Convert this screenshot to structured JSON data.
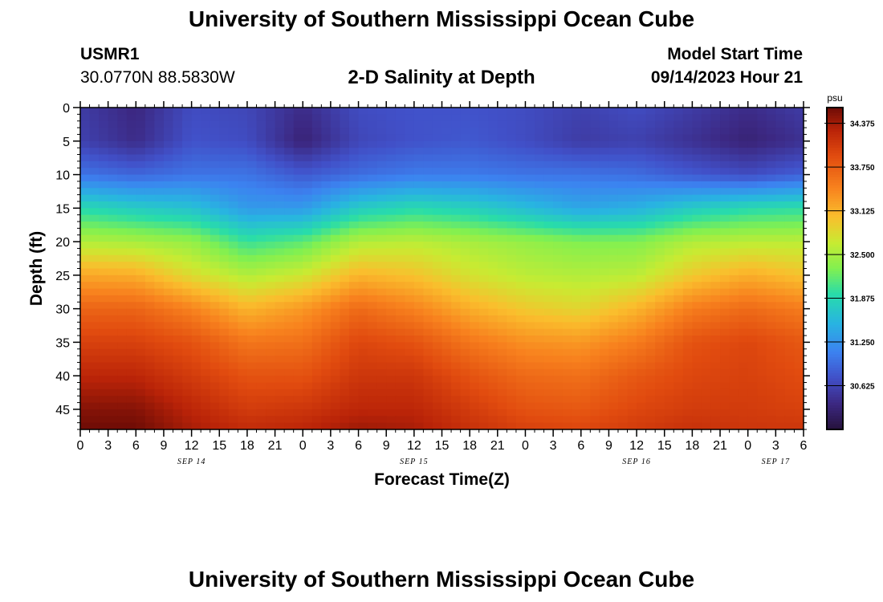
{
  "header": {
    "title": "University of Southern Mississippi Ocean Cube",
    "station_id": "USMR1",
    "station_coords": "30.0770N  88.5830W",
    "chart_title": "2-D Salinity at Depth",
    "start_label": "Model Start Time",
    "start_value": "09/14/2023 Hour 21"
  },
  "footer": {
    "title": "University of Southern Mississippi Ocean Cube"
  },
  "chart_data": {
    "type": "heatmap",
    "title": "2-D Salinity at Depth",
    "xlabel": "Forecast Time(Z)",
    "ylabel": "Depth (ft)",
    "units": "psu",
    "xlim": [
      0,
      78
    ],
    "ylim": [
      48,
      0
    ],
    "x_ticks": [
      0,
      3,
      6,
      9,
      12,
      15,
      18,
      21,
      24,
      27,
      30,
      33,
      36,
      39,
      42,
      45,
      48,
      51,
      54,
      57,
      60,
      63,
      66,
      69,
      72,
      75,
      78
    ],
    "x_tick_labels": [
      "0",
      "3",
      "6",
      "9",
      "12",
      "15",
      "18",
      "21",
      "0",
      "3",
      "6",
      "9",
      "12",
      "15",
      "18",
      "21",
      "0",
      "3",
      "6",
      "9",
      "12",
      "15",
      "18",
      "21",
      "0",
      "3",
      "6"
    ],
    "y_ticks": [
      0,
      5,
      10,
      15,
      20,
      25,
      30,
      35,
      40,
      45
    ],
    "y_tick_labels": [
      "0",
      "5",
      "10",
      "15",
      "20",
      "25",
      "30",
      "35",
      "40",
      "45"
    ],
    "date_labels": [
      {
        "x": 12,
        "label": "SEP 14"
      },
      {
        "x": 36,
        "label": "SEP 15"
      },
      {
        "x": 60,
        "label": "SEP 16"
      },
      {
        "x": 75,
        "label": "SEP 17"
      }
    ],
    "colorbar": {
      "min": 30.0,
      "max": 34.6,
      "ticks": [
        30.625,
        31.25,
        31.875,
        32.5,
        33.125,
        33.75,
        34.375
      ],
      "tick_labels": [
        "30.625",
        "31.250",
        "31.875",
        "32.500",
        "33.125",
        "33.750",
        "34.375"
      ]
    },
    "grid": {
      "hours": [
        0,
        6,
        12,
        18,
        24,
        30,
        36,
        42,
        48,
        54,
        60,
        66,
        72,
        78
      ],
      "depths": [
        0,
        5,
        10,
        15,
        20,
        25,
        30,
        35,
        40,
        45,
        48
      ],
      "salinity": [
        [
          30.55,
          30.35,
          30.7,
          30.65,
          30.4,
          30.7,
          30.75,
          30.75,
          30.7,
          30.6,
          30.7,
          30.55,
          30.4,
          30.55
        ],
        [
          30.6,
          30.4,
          30.75,
          30.7,
          30.3,
          30.65,
          30.75,
          30.8,
          30.7,
          30.55,
          30.6,
          30.45,
          30.3,
          30.45
        ],
        [
          31.0,
          30.9,
          31.0,
          31.0,
          30.8,
          30.95,
          31.05,
          31.05,
          31.0,
          31.0,
          30.95,
          30.8,
          30.7,
          30.85
        ],
        [
          31.9,
          31.75,
          31.65,
          31.3,
          31.3,
          31.75,
          31.9,
          31.8,
          31.6,
          31.4,
          31.5,
          31.75,
          31.9,
          31.95
        ],
        [
          32.55,
          32.5,
          32.4,
          32.0,
          32.15,
          32.55,
          32.6,
          32.5,
          32.4,
          32.3,
          32.3,
          32.55,
          32.6,
          32.6
        ],
        [
          33.2,
          33.15,
          32.8,
          32.55,
          32.7,
          33.1,
          33.0,
          32.75,
          32.6,
          32.55,
          32.6,
          32.95,
          33.15,
          33.0
        ],
        [
          33.7,
          33.7,
          33.45,
          33.1,
          33.3,
          33.65,
          33.45,
          33.15,
          32.95,
          32.85,
          33.1,
          33.5,
          33.65,
          33.5
        ],
        [
          34.0,
          34.0,
          33.85,
          33.55,
          33.6,
          33.95,
          33.85,
          33.55,
          33.35,
          33.3,
          33.5,
          33.85,
          33.95,
          33.8
        ],
        [
          34.25,
          34.25,
          34.05,
          33.85,
          33.85,
          34.1,
          34.1,
          33.85,
          33.65,
          33.6,
          33.8,
          33.95,
          34.0,
          33.9
        ],
        [
          34.5,
          34.5,
          34.25,
          34.05,
          34.1,
          34.25,
          34.25,
          34.05,
          33.85,
          33.8,
          33.95,
          34.05,
          34.05,
          34.0
        ],
        [
          34.6,
          34.6,
          34.35,
          34.2,
          34.25,
          34.4,
          34.35,
          34.15,
          34.0,
          33.95,
          34.05,
          34.15,
          34.1,
          34.1
        ]
      ]
    }
  }
}
